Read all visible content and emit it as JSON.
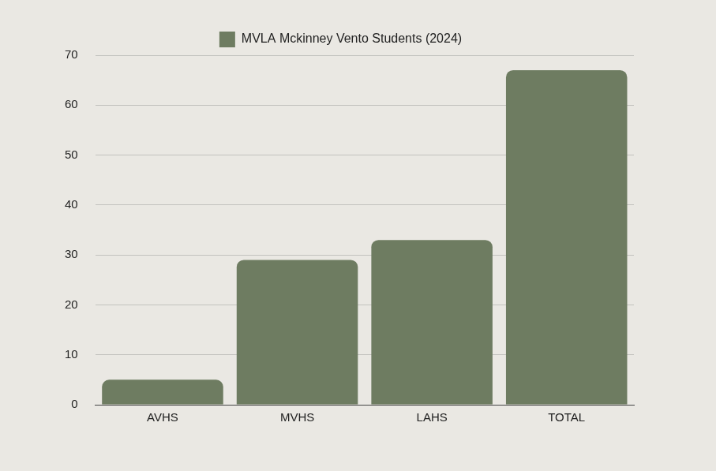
{
  "chart_data": {
    "type": "bar",
    "categories": [
      "AVHS",
      "MVHS",
      "LAHS",
      "TOTAL"
    ],
    "series": [
      {
        "name": "MVLA Mckinney Vento Students (2024)",
        "color": "#6e7c61",
        "values": [
          5,
          29,
          33,
          67
        ]
      }
    ],
    "ylim": [
      0,
      70
    ],
    "yticks": [
      0,
      10,
      20,
      30,
      40,
      50,
      60,
      70
    ],
    "grid": true,
    "legend": "top"
  }
}
